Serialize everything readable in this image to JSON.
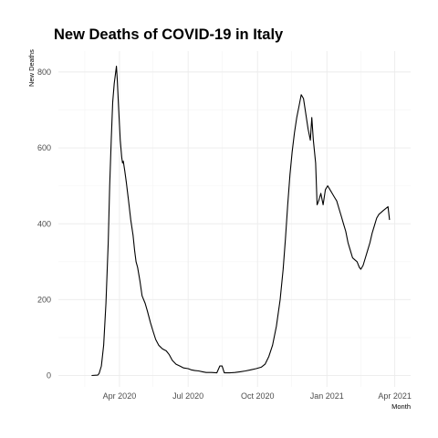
{
  "chart_data": {
    "type": "line",
    "title": "New Deaths of COVID-19 in Italy",
    "xlabel": "Month",
    "ylabel": "New Deaths",
    "x_ticks": [
      {
        "date": "2020-04-01",
        "label": "Apr 2020"
      },
      {
        "date": "2020-07-01",
        "label": "Jul 2020"
      },
      {
        "date": "2020-10-01",
        "label": "Oct 2020"
      },
      {
        "date": "2021-01-01",
        "label": "Jan 2021"
      },
      {
        "date": "2021-04-01",
        "label": "Apr 2021"
      }
    ],
    "x_minor_ticks": [
      "2020-02-15",
      "2020-05-15",
      "2020-08-15",
      "2020-11-15",
      "2021-02-15"
    ],
    "y_ticks": [
      0,
      200,
      400,
      600,
      800
    ],
    "y_minor_ticks": [
      100,
      300,
      500,
      700
    ],
    "xlim": [
      "2020-01-11",
      "2021-04-22"
    ],
    "ylim": [
      -30,
      855
    ],
    "grid": true,
    "line_color": "#000000",
    "series": [
      {
        "points": [
          [
            "2020-02-24",
            0
          ],
          [
            "2020-03-03",
            1
          ],
          [
            "2020-03-05",
            5
          ],
          [
            "2020-03-08",
            25
          ],
          [
            "2020-03-11",
            80
          ],
          [
            "2020-03-14",
            190
          ],
          [
            "2020-03-17",
            350
          ],
          [
            "2020-03-19",
            500
          ],
          [
            "2020-03-21",
            620
          ],
          [
            "2020-03-23",
            720
          ],
          [
            "2020-03-25",
            770
          ],
          [
            "2020-03-27",
            800
          ],
          [
            "2020-03-28",
            815
          ],
          [
            "2020-03-29",
            780
          ],
          [
            "2020-03-31",
            700
          ],
          [
            "2020-04-02",
            620
          ],
          [
            "2020-04-04",
            575
          ],
          [
            "2020-04-05",
            560
          ],
          [
            "2020-04-06",
            565
          ],
          [
            "2020-04-08",
            540
          ],
          [
            "2020-04-10",
            510
          ],
          [
            "2020-04-13",
            460
          ],
          [
            "2020-04-16",
            410
          ],
          [
            "2020-04-19",
            370
          ],
          [
            "2020-04-21",
            330
          ],
          [
            "2020-04-23",
            300
          ],
          [
            "2020-04-25",
            285
          ],
          [
            "2020-04-28",
            250
          ],
          [
            "2020-05-01",
            210
          ],
          [
            "2020-05-05",
            190
          ],
          [
            "2020-05-08",
            170
          ],
          [
            "2020-05-12",
            140
          ],
          [
            "2020-05-15",
            120
          ],
          [
            "2020-05-19",
            95
          ],
          [
            "2020-05-23",
            80
          ],
          [
            "2020-05-28",
            70
          ],
          [
            "2020-06-02",
            65
          ],
          [
            "2020-06-06",
            55
          ],
          [
            "2020-06-10",
            40
          ],
          [
            "2020-06-15",
            30
          ],
          [
            "2020-06-20",
            25
          ],
          [
            "2020-06-25",
            20
          ],
          [
            "2020-07-01",
            18
          ],
          [
            "2020-07-05",
            15
          ],
          [
            "2020-07-10",
            13
          ],
          [
            "2020-07-15",
            12
          ],
          [
            "2020-07-20",
            10
          ],
          [
            "2020-07-25",
            8
          ],
          [
            "2020-08-01",
            8
          ],
          [
            "2020-08-08",
            7
          ],
          [
            "2020-08-12",
            25
          ],
          [
            "2020-08-15",
            25
          ],
          [
            "2020-08-18",
            7
          ],
          [
            "2020-08-25",
            7
          ],
          [
            "2020-09-01",
            8
          ],
          [
            "2020-09-08",
            10
          ],
          [
            "2020-09-15",
            12
          ],
          [
            "2020-09-22",
            15
          ],
          [
            "2020-09-29",
            18
          ],
          [
            "2020-10-06",
            22
          ],
          [
            "2020-10-11",
            30
          ],
          [
            "2020-10-16",
            50
          ],
          [
            "2020-10-21",
            80
          ],
          [
            "2020-10-26",
            130
          ],
          [
            "2020-10-31",
            200
          ],
          [
            "2020-11-04",
            280
          ],
          [
            "2020-11-07",
            360
          ],
          [
            "2020-11-10",
            450
          ],
          [
            "2020-11-13",
            530
          ],
          [
            "2020-11-16",
            590
          ],
          [
            "2020-11-19",
            640
          ],
          [
            "2020-11-22",
            680
          ],
          [
            "2020-11-25",
            710
          ],
          [
            "2020-11-28",
            740
          ],
          [
            "2020-12-01",
            730
          ],
          [
            "2020-12-04",
            690
          ],
          [
            "2020-12-07",
            650
          ],
          [
            "2020-12-10",
            620
          ],
          [
            "2020-12-12",
            680
          ],
          [
            "2020-12-14",
            620
          ],
          [
            "2020-12-17",
            560
          ],
          [
            "2020-12-19",
            450
          ],
          [
            "2020-12-21",
            460
          ],
          [
            "2020-12-24",
            480
          ],
          [
            "2020-12-27",
            450
          ],
          [
            "2020-12-30",
            490
          ],
          [
            "2021-01-02",
            500
          ],
          [
            "2021-01-05",
            490
          ],
          [
            "2021-01-08",
            480
          ],
          [
            "2021-01-11",
            470
          ],
          [
            "2021-01-14",
            460
          ],
          [
            "2021-01-17",
            440
          ],
          [
            "2021-01-20",
            420
          ],
          [
            "2021-01-23",
            400
          ],
          [
            "2021-01-26",
            380
          ],
          [
            "2021-01-29",
            350
          ],
          [
            "2021-02-01",
            330
          ],
          [
            "2021-02-04",
            310
          ],
          [
            "2021-02-07",
            305
          ],
          [
            "2021-02-10",
            300
          ],
          [
            "2021-02-13",
            285
          ],
          [
            "2021-02-15",
            280
          ],
          [
            "2021-02-18",
            290
          ],
          [
            "2021-02-21",
            310
          ],
          [
            "2021-02-24",
            330
          ],
          [
            "2021-02-27",
            350
          ],
          [
            "2021-03-02",
            375
          ],
          [
            "2021-03-05",
            395
          ],
          [
            "2021-03-08",
            415
          ],
          [
            "2021-03-11",
            425
          ],
          [
            "2021-03-14",
            430
          ],
          [
            "2021-03-17",
            435
          ],
          [
            "2021-03-20",
            440
          ],
          [
            "2021-03-23",
            445
          ],
          [
            "2021-03-25",
            410
          ]
        ]
      }
    ]
  }
}
